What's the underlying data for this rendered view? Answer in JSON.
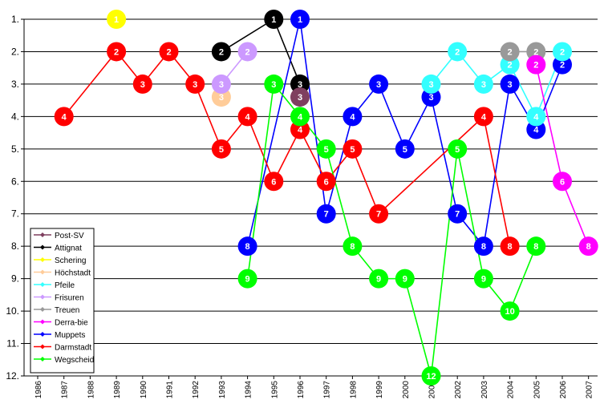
{
  "chart_data": {
    "type": "line",
    "y_reversed": true,
    "ylim": [
      1,
      12
    ],
    "y_ticks": [
      "1.",
      "2.",
      "3.",
      "4.",
      "5.",
      "6.",
      "7.",
      "8.",
      "9.",
      "10.",
      "11.",
      "12."
    ],
    "categories": [
      "1986",
      "1987",
      "1988",
      "1989",
      "1990",
      "1991",
      "1992",
      "1993",
      "1994",
      "1995",
      "1996",
      "1997",
      "1998",
      "1999",
      "2000",
      "2001",
      "2002",
      "2003",
      "2004",
      "2005",
      "2006",
      "2007"
    ],
    "grid": "horizontal",
    "legend_position": "bottom-left",
    "series": [
      {
        "name": "Post-SV",
        "color": "#7f3f5f",
        "points": [
          [
            "1996",
            3.4
          ]
        ]
      },
      {
        "name": "Attignat",
        "color": "#000000",
        "points": [
          [
            "1993",
            2
          ],
          [
            "1995",
            1
          ],
          [
            "1996",
            3
          ]
        ]
      },
      {
        "name": "Schering",
        "color": "#ffff00",
        "points": [
          [
            "1989",
            1
          ]
        ]
      },
      {
        "name": "Höchstadt",
        "color": "#ffcc99",
        "points": [
          [
            "1993",
            3.4
          ]
        ]
      },
      {
        "name": "Pfeile",
        "color": "#33ffff",
        "points": [
          [
            "2001",
            3
          ],
          [
            "2002",
            2
          ],
          [
            "2003",
            3
          ],
          [
            "2004",
            2.4
          ],
          [
            "2005",
            4
          ],
          [
            "2006",
            2
          ]
        ]
      },
      {
        "name": "Frisuren",
        "color": "#cc99ff",
        "points": [
          [
            "1993",
            3
          ],
          [
            "1994",
            2
          ]
        ]
      },
      {
        "name": "Treuen",
        "color": "#999999",
        "points": [
          [
            "2004",
            2
          ],
          [
            "2005",
            2
          ]
        ]
      },
      {
        "name": "Derra-bie",
        "color": "#ff00ff",
        "points": [
          [
            "2005",
            2.4
          ],
          [
            "2006",
            6
          ],
          [
            "2007",
            8
          ]
        ]
      },
      {
        "name": "Muppets",
        "color": "#0000ff",
        "points": [
          [
            "1994",
            8
          ],
          [
            "1996",
            1
          ],
          [
            "1997",
            7
          ],
          [
            "1998",
            4
          ],
          [
            "1999",
            3
          ],
          [
            "2000",
            5
          ],
          [
            "2001",
            3.4
          ],
          [
            "2002",
            7
          ],
          [
            "2003",
            8
          ],
          [
            "2004",
            3
          ],
          [
            "2005",
            4.4
          ],
          [
            "2006",
            2.4
          ]
        ]
      },
      {
        "name": "Darmstadt",
        "color": "#ff0000",
        "points": [
          [
            "1987",
            4
          ],
          [
            "1989",
            2
          ],
          [
            "1990",
            3
          ],
          [
            "1991",
            2
          ],
          [
            "1992",
            3
          ],
          [
            "1993",
            5
          ],
          [
            "1994",
            4
          ],
          [
            "1995",
            6
          ],
          [
            "1996",
            4.4
          ],
          [
            "1997",
            6
          ],
          [
            "1998",
            5
          ],
          [
            "1999",
            7
          ],
          [
            "2003",
            4
          ],
          [
            "2004",
            8
          ]
        ]
      },
      {
        "name": "Wegscheid",
        "color": "#00ff00",
        "points": [
          [
            "1994",
            9
          ],
          [
            "1995",
            3
          ],
          [
            "1996",
            4
          ],
          [
            "1997",
            5
          ],
          [
            "1998",
            8
          ],
          [
            "1999",
            9
          ],
          [
            "2000",
            9
          ],
          [
            "2001",
            12
          ],
          [
            "2002",
            5
          ],
          [
            "2003",
            9
          ],
          [
            "2004",
            10
          ],
          [
            "2005",
            8
          ]
        ]
      }
    ],
    "marker_labels": [
      {
        "series": "Schering",
        "x": "1989",
        "y": 1,
        "label": "1"
      },
      {
        "series": "Darmstadt",
        "x": "1987",
        "y": 4,
        "label": "4"
      },
      {
        "series": "Darmstadt",
        "x": "1989",
        "y": 2,
        "label": "2"
      },
      {
        "series": "Darmstadt",
        "x": "1990",
        "y": 3,
        "label": "3"
      },
      {
        "series": "Darmstadt",
        "x": "1991",
        "y": 2,
        "label": "2"
      },
      {
        "series": "Darmstadt",
        "x": "1992",
        "y": 3,
        "label": "3"
      },
      {
        "series": "Darmstadt",
        "x": "1993",
        "y": 5,
        "label": "5"
      },
      {
        "series": "Darmstadt",
        "x": "1994",
        "y": 4,
        "label": "4"
      },
      {
        "series": "Darmstadt",
        "x": "1995",
        "y": 6,
        "label": "6"
      },
      {
        "series": "Darmstadt",
        "x": "1996",
        "y": 4.4,
        "label": "4"
      },
      {
        "series": "Darmstadt",
        "x": "1997",
        "y": 6,
        "label": "6"
      },
      {
        "series": "Darmstadt",
        "x": "1998",
        "y": 5,
        "label": "5"
      },
      {
        "series": "Darmstadt",
        "x": "1999",
        "y": 7,
        "label": "7"
      },
      {
        "series": "Darmstadt",
        "x": "2003",
        "y": 4,
        "label": "4"
      },
      {
        "series": "Darmstadt",
        "x": "2004",
        "y": 8,
        "label": "8"
      },
      {
        "series": "Höchstadt",
        "x": "1993",
        "y": 3.4,
        "label": "3"
      },
      {
        "series": "Frisuren",
        "x": "1993",
        "y": 3,
        "label": "3"
      },
      {
        "series": "Frisuren",
        "x": "1994",
        "y": 2,
        "label": "2"
      },
      {
        "series": "Attignat",
        "x": "1993",
        "y": 2,
        "label": "2"
      },
      {
        "series": "Attignat",
        "x": "1995",
        "y": 1,
        "label": "1"
      },
      {
        "series": "Attignat",
        "x": "1996",
        "y": 3,
        "label": "3"
      },
      {
        "series": "Post-SV",
        "x": "1996",
        "y": 3.4,
        "label": "3"
      },
      {
        "series": "Wegscheid",
        "x": "1994",
        "y": 9,
        "label": "9"
      },
      {
        "series": "Wegscheid",
        "x": "1995",
        "y": 3,
        "label": "3"
      },
      {
        "series": "Wegscheid",
        "x": "1996",
        "y": 4,
        "label": "4"
      },
      {
        "series": "Wegscheid",
        "x": "1997",
        "y": 5,
        "label": "5"
      },
      {
        "series": "Wegscheid",
        "x": "1998",
        "y": 8,
        "label": "8"
      },
      {
        "series": "Wegscheid",
        "x": "1999",
        "y": 9,
        "label": "9"
      },
      {
        "series": "Wegscheid",
        "x": "2000",
        "y": 9,
        "label": "9"
      },
      {
        "series": "Wegscheid",
        "x": "2001",
        "y": 12,
        "label": "12"
      },
      {
        "series": "Wegscheid",
        "x": "2002",
        "y": 5,
        "label": "5"
      },
      {
        "series": "Wegscheid",
        "x": "2003",
        "y": 9,
        "label": "9"
      },
      {
        "series": "Wegscheid",
        "x": "2004",
        "y": 10,
        "label": "10"
      },
      {
        "series": "Wegscheid",
        "x": "2005",
        "y": 8,
        "label": "8"
      },
      {
        "series": "Muppets",
        "x": "1994",
        "y": 8,
        "label": "8"
      },
      {
        "series": "Muppets",
        "x": "1996",
        "y": 1,
        "label": "1"
      },
      {
        "series": "Muppets",
        "x": "1997",
        "y": 7,
        "label": "7"
      },
      {
        "series": "Muppets",
        "x": "1998",
        "y": 4,
        "label": "4"
      },
      {
        "series": "Muppets",
        "x": "1999",
        "y": 3,
        "label": "3"
      },
      {
        "series": "Muppets",
        "x": "2000",
        "y": 5,
        "label": "5"
      },
      {
        "series": "Muppets",
        "x": "2001",
        "y": 3.4,
        "label": "3"
      },
      {
        "series": "Muppets",
        "x": "2002",
        "y": 7,
        "label": "7"
      },
      {
        "series": "Muppets",
        "x": "2003",
        "y": 8,
        "label": "8"
      },
      {
        "series": "Muppets",
        "x": "2004",
        "y": 3,
        "label": "3"
      },
      {
        "series": "Muppets",
        "x": "2005",
        "y": 4.4,
        "label": "4"
      },
      {
        "series": "Muppets",
        "x": "2006",
        "y": 2.4,
        "label": "2"
      },
      {
        "series": "Pfeile",
        "x": "2001",
        "y": 3,
        "label": "3"
      },
      {
        "series": "Pfeile",
        "x": "2002",
        "y": 2,
        "label": "2"
      },
      {
        "series": "Pfeile",
        "x": "2003",
        "y": 3,
        "label": "3"
      },
      {
        "series": "Pfeile",
        "x": "2004",
        "y": 2.4,
        "label": "2"
      },
      {
        "series": "Pfeile",
        "x": "2005",
        "y": 4,
        "label": "4"
      },
      {
        "series": "Pfeile",
        "x": "2006",
        "y": 2,
        "label": "2"
      },
      {
        "series": "Treuen",
        "x": "2004",
        "y": 2,
        "label": "2"
      },
      {
        "series": "Treuen",
        "x": "2005",
        "y": 2,
        "label": "2"
      },
      {
        "series": "Derra-bie",
        "x": "2005",
        "y": 2.4,
        "label": "2"
      },
      {
        "series": "Derra-bie",
        "x": "2006",
        "y": 6,
        "label": "6"
      },
      {
        "series": "Derra-bie",
        "x": "2007",
        "y": 8,
        "label": "8"
      }
    ]
  }
}
